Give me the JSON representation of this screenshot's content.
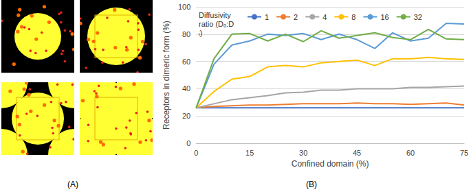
{
  "panel_labels": [
    "(A)",
    "(B)"
  ],
  "chart_data": {
    "type": "line",
    "x_label": "Confined domain (%)",
    "y_label": "Receptors in dimeric form (%)",
    "legend_title": "Diffusivity ratio (Dₒ:Dᵢ)",
    "legend": "top",
    "grid": true,
    "x": [
      0,
      5,
      10,
      15,
      20,
      25,
      30,
      35,
      40,
      45,
      50,
      55,
      60,
      65,
      70,
      75
    ],
    "xlim": [
      0,
      75
    ],
    "xticks": [
      0,
      15,
      30,
      45,
      60,
      75
    ],
    "ylim": [
      0,
      100
    ],
    "yticks": [
      0,
      20,
      40,
      60,
      80,
      100
    ],
    "series": [
      {
        "name": "1",
        "color": "#4472c4",
        "values": [
          26,
          26,
          26,
          26,
          26,
          26,
          26,
          26,
          26,
          26,
          26,
          26,
          26,
          26,
          26,
          26
        ]
      },
      {
        "name": "2",
        "color": "#ed7d31",
        "values": [
          26,
          27,
          27.5,
          28,
          28,
          28.5,
          29,
          29,
          29,
          29.5,
          29,
          29,
          28.5,
          29,
          29.5,
          28
        ]
      },
      {
        "name": "4",
        "color": "#a5a5a5",
        "values": [
          26,
          29,
          32,
          33.5,
          35,
          37,
          37.5,
          39,
          39,
          40,
          40,
          40,
          41,
          41,
          41.5,
          42
        ]
      },
      {
        "name": "8",
        "color": "#ffc000",
        "values": [
          26,
          38,
          47,
          49,
          56,
          57,
          56,
          59,
          60,
          61,
          57,
          62,
          62,
          63,
          62,
          61.5
        ]
      },
      {
        "name": "16",
        "color": "#5b9bd5",
        "values": [
          26,
          58,
          72,
          75,
          80,
          79,
          80.5,
          76,
          80,
          76,
          69.5,
          81,
          75,
          77,
          88,
          87.5
        ]
      },
      {
        "name": "32",
        "color": "#70ad47",
        "values": [
          26,
          62,
          80,
          80.5,
          75,
          80,
          74.5,
          82.5,
          77,
          79,
          81,
          77.5,
          76,
          83.5,
          76.5,
          76
        ]
      }
    ]
  }
}
